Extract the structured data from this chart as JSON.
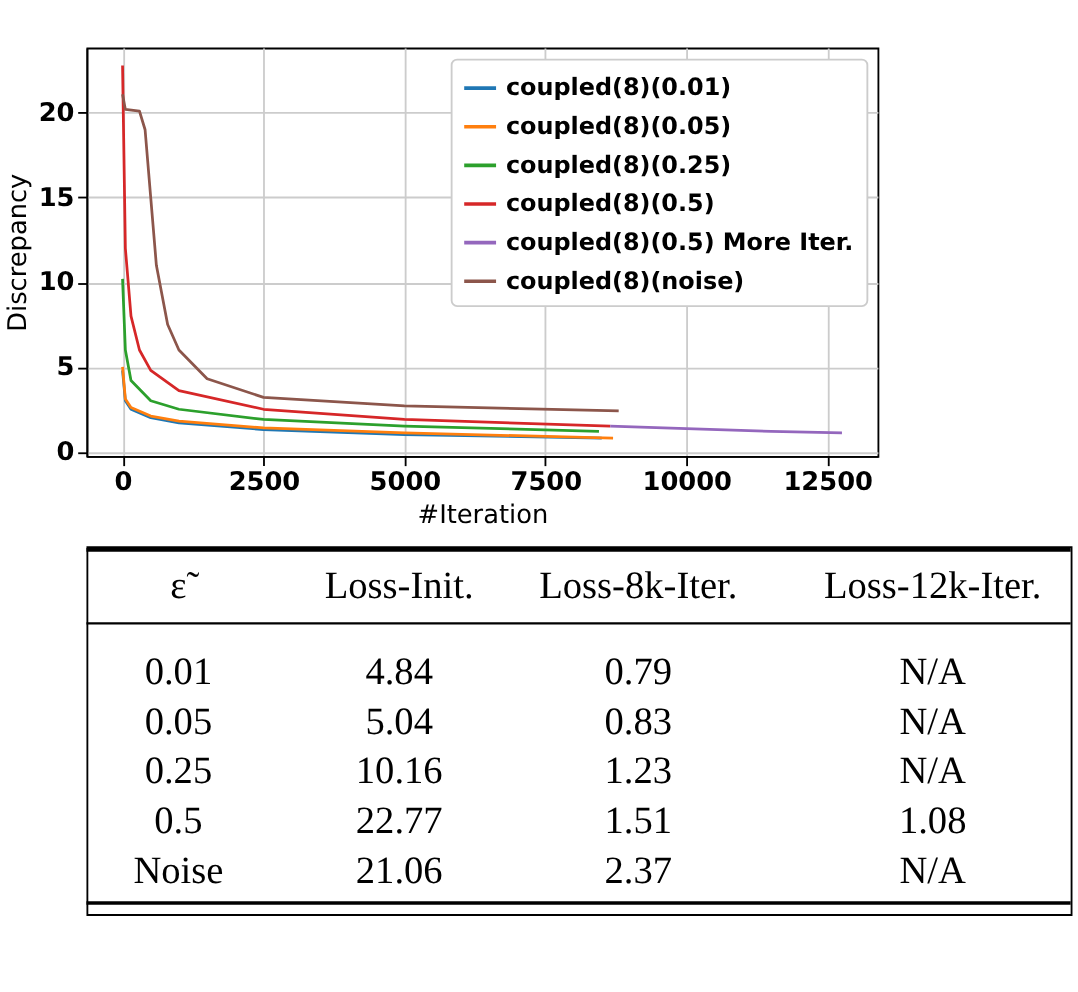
{
  "chart_data": [
    {
      "type": "line",
      "xlabel": "#Iteration",
      "ylabel": "Discrepancy",
      "xlim": [
        -640,
        13390
      ],
      "ylim": [
        -0.26,
        23.85
      ],
      "xticks": [
        0,
        2500,
        5000,
        7500,
        10000,
        12500
      ],
      "yticks": [
        0,
        5,
        10,
        15,
        20
      ],
      "grid": true,
      "legend": "top right",
      "line_style": "solid",
      "marker": "none",
      "series": [
        {
          "name": "coupled(8)(0.01)",
          "color": "#1f77b4",
          "x": [
            0,
            50,
            150,
            500,
            1000,
            2500,
            5000,
            8500
          ],
          "values": [
            4.8,
            3.0,
            2.5,
            2.0,
            1.7,
            1.3,
            1.0,
            0.8
          ]
        },
        {
          "name": "coupled(8)(0.05)",
          "color": "#ff7f0e",
          "x": [
            0,
            50,
            150,
            500,
            1000,
            2500,
            5000,
            8700
          ],
          "values": [
            5.0,
            3.1,
            2.6,
            2.1,
            1.8,
            1.4,
            1.1,
            0.8
          ]
        },
        {
          "name": "coupled(8)(0.25)",
          "color": "#2ca02c",
          "x": [
            0,
            50,
            150,
            500,
            1000,
            2500,
            5000,
            8450
          ],
          "values": [
            10.2,
            6.0,
            4.2,
            3.0,
            2.5,
            1.9,
            1.5,
            1.2
          ]
        },
        {
          "name": "coupled(8)(0.5)",
          "color": "#d62728",
          "x": [
            0,
            50,
            150,
            300,
            500,
            1000,
            2500,
            5000,
            8650
          ],
          "values": [
            22.8,
            12.0,
            8.0,
            6.0,
            4.8,
            3.6,
            2.5,
            1.9,
            1.5
          ]
        },
        {
          "name": "coupled(8)(0.5) More Iter.",
          "color": "#9467bd",
          "x": [
            8650,
            10000,
            11500,
            12760
          ],
          "values": [
            1.5,
            1.35,
            1.2,
            1.1
          ]
        },
        {
          "name": "coupled(8)(noise)",
          "color": "#8c564b",
          "x": [
            0,
            50,
            300,
            400,
            500,
            600,
            800,
            1000,
            1500,
            2500,
            5000,
            8800
          ],
          "values": [
            21.1,
            20.2,
            20.1,
            19.0,
            15.0,
            11.0,
            7.5,
            6.0,
            4.3,
            3.2,
            2.7,
            2.4
          ]
        }
      ]
    },
    {
      "type": "other",
      "annotations": [
        "ε̃",
        "Loss-Init.",
        "Loss-8k-Iter.",
        "Loss-12k-Iter.",
        "0.01",
        "4.84",
        "0.79",
        "N/A",
        "0.05",
        "5.04",
        "0.83",
        "N/A",
        "0.25",
        "10.16",
        "1.23",
        "N/A",
        "0.5",
        "22.77",
        "1.51",
        "1.08",
        "Noise",
        "21.06",
        "2.37",
        "N/A"
      ]
    }
  ]
}
